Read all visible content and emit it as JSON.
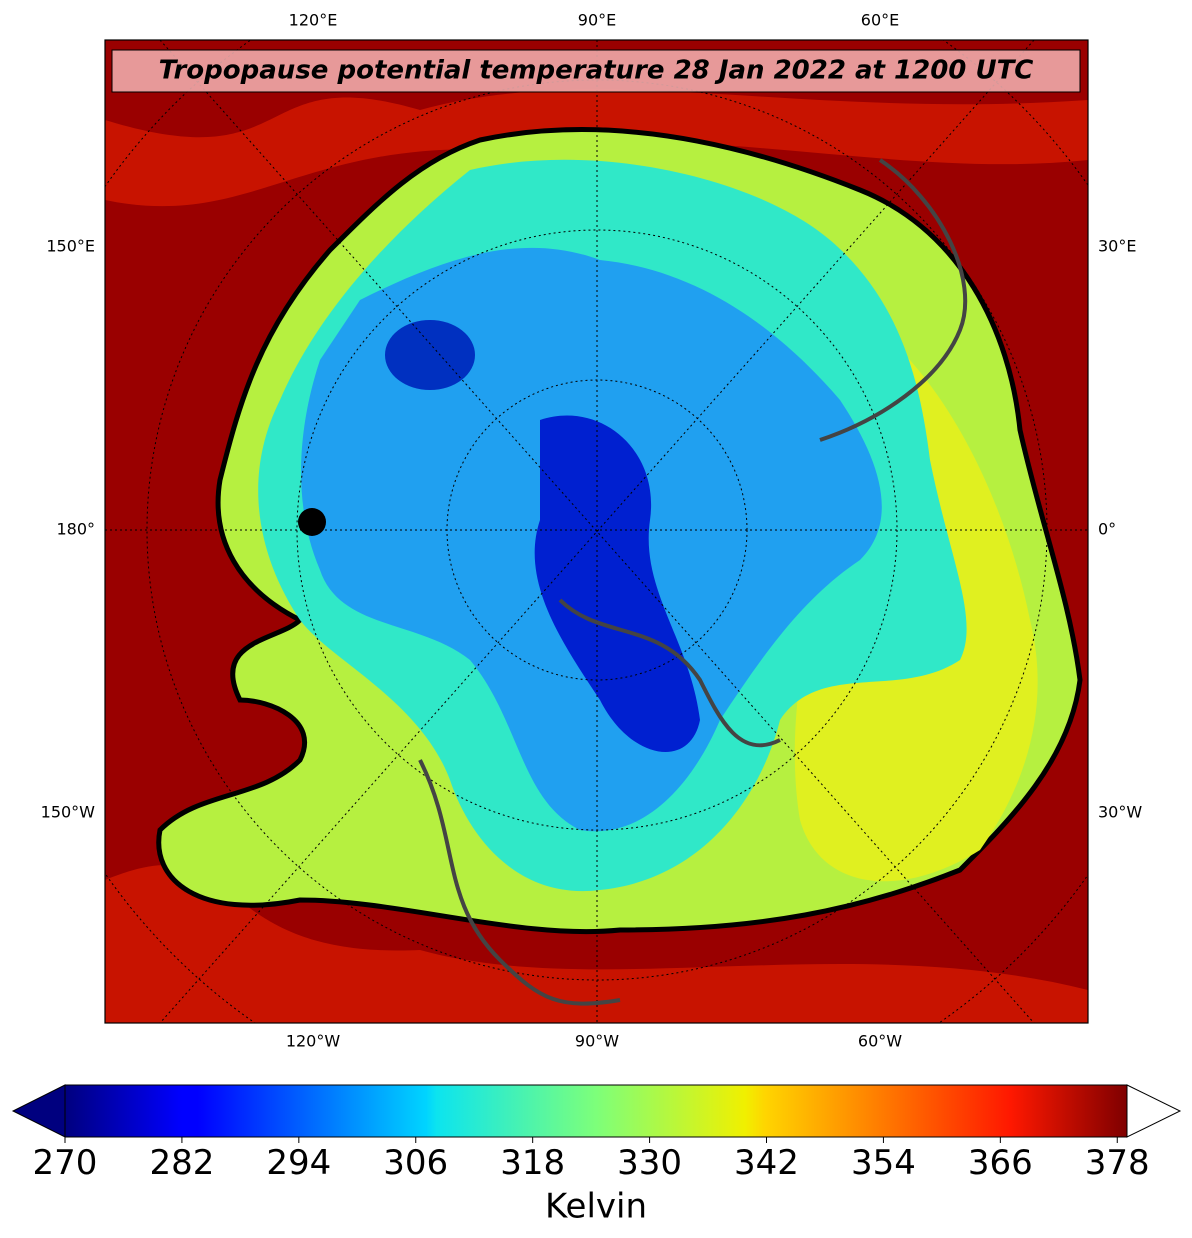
{
  "title": "Tropopause potential temperature 28 Jan 2022 at 1200 UTC",
  "map": {
    "top_labels": [
      "120°E",
      "90°E",
      "60°E"
    ],
    "bottom_labels": [
      "120°W",
      "90°W",
      "60°W"
    ],
    "left_labels": [
      "150°E",
      "180°",
      "150°W"
    ],
    "right_labels": [
      "30°E",
      "0°",
      "30°W"
    ]
  },
  "colorbar": {
    "label": "Kelvin",
    "colormap": "jet",
    "lim": [
      270,
      379
    ],
    "ticks": [
      270,
      282,
      294,
      306,
      318,
      330,
      342,
      354,
      366,
      378
    ]
  }
}
